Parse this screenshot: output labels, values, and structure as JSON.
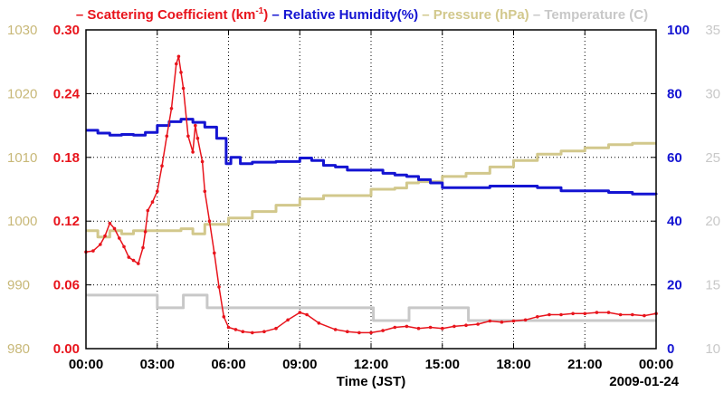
{
  "chart_data": {
    "type": "line",
    "legend": [
      {
        "prefix": "– ",
        "label": "Scattering Coefficient (km",
        "sup": "-1",
        "suffix": ")",
        "color": "#e8141c"
      },
      {
        "prefix": "– ",
        "label": "Relative Humidity(%)",
        "color": "#1414d2"
      },
      {
        "prefix": "– ",
        "label": "Pressure (hPa)",
        "color": "#d2c88c"
      },
      {
        "prefix": "– ",
        "label": "Temperature (C)",
        "color": "#c8c8c8"
      }
    ],
    "xlabel": "Time (JST)",
    "date_label": "2009-01-24",
    "x_range_hours": [
      0,
      24
    ],
    "x_ticks": [
      {
        "h": 0,
        "label": "00:00"
      },
      {
        "h": 3,
        "label": "03:00"
      },
      {
        "h": 6,
        "label": "06:00"
      },
      {
        "h": 9,
        "label": "09:00"
      },
      {
        "h": 12,
        "label": "12:00"
      },
      {
        "h": 15,
        "label": "15:00"
      },
      {
        "h": 18,
        "label": "18:00"
      },
      {
        "h": 21,
        "label": "21:00"
      },
      {
        "h": 24,
        "label": "00:00"
      }
    ],
    "axes": {
      "pressure": {
        "range": [
          980,
          1030
        ],
        "ticks": [
          "980",
          "990",
          "1000",
          "1010",
          "1020",
          "1030"
        ],
        "color": "#c8b878"
      },
      "scattering": {
        "range": [
          0,
          0.3
        ],
        "ticks": [
          "0.00",
          "0.06",
          "0.12",
          "0.18",
          "0.24",
          "0.30"
        ],
        "color": "#e8141c"
      },
      "humidity": {
        "range": [
          0,
          100
        ],
        "ticks": [
          "0",
          "20",
          "40",
          "60",
          "80",
          "100"
        ],
        "color": "#1414d2"
      },
      "temperature": {
        "range": [
          10,
          35
        ],
        "ticks": [
          "10",
          "15",
          "20",
          "25",
          "30",
          "35"
        ],
        "color": "#c8c8c8"
      }
    },
    "series": [
      {
        "name": "Scattering Coefficient",
        "axis": "scattering",
        "color": "#e8141c",
        "markers": true,
        "points": [
          [
            0,
            0.091
          ],
          [
            0.3,
            0.092
          ],
          [
            0.6,
            0.098
          ],
          [
            0.8,
            0.106
          ],
          [
            1.0,
            0.118
          ],
          [
            1.2,
            0.113
          ],
          [
            1.4,
            0.104
          ],
          [
            1.6,
            0.096
          ],
          [
            1.8,
            0.086
          ],
          [
            2.0,
            0.083
          ],
          [
            2.2,
            0.08
          ],
          [
            2.4,
            0.095
          ],
          [
            2.5,
            0.11
          ],
          [
            2.6,
            0.13
          ],
          [
            2.8,
            0.138
          ],
          [
            3.0,
            0.148
          ],
          [
            3.2,
            0.172
          ],
          [
            3.4,
            0.2
          ],
          [
            3.6,
            0.226
          ],
          [
            3.8,
            0.268
          ],
          [
            3.9,
            0.275
          ],
          [
            4.0,
            0.26
          ],
          [
            4.1,
            0.245
          ],
          [
            4.3,
            0.2
          ],
          [
            4.5,
            0.185
          ],
          [
            4.6,
            0.21
          ],
          [
            4.7,
            0.198
          ],
          [
            4.9,
            0.176
          ],
          [
            5.0,
            0.148
          ],
          [
            5.2,
            0.12
          ],
          [
            5.4,
            0.09
          ],
          [
            5.6,
            0.058
          ],
          [
            5.8,
            0.03
          ],
          [
            6.0,
            0.02
          ],
          [
            6.3,
            0.018
          ],
          [
            6.6,
            0.016
          ],
          [
            7.0,
            0.015
          ],
          [
            7.5,
            0.016
          ],
          [
            8.0,
            0.019
          ],
          [
            8.5,
            0.027
          ],
          [
            9.0,
            0.034
          ],
          [
            9.3,
            0.032
          ],
          [
            9.8,
            0.024
          ],
          [
            10.5,
            0.018
          ],
          [
            11.0,
            0.016
          ],
          [
            11.5,
            0.015
          ],
          [
            12.0,
            0.015
          ],
          [
            12.5,
            0.017
          ],
          [
            13.0,
            0.02
          ],
          [
            13.5,
            0.021
          ],
          [
            14.0,
            0.019
          ],
          [
            14.5,
            0.02
          ],
          [
            15.0,
            0.019
          ],
          [
            15.5,
            0.021
          ],
          [
            16.0,
            0.022
          ],
          [
            16.5,
            0.023
          ],
          [
            17.0,
            0.026
          ],
          [
            17.5,
            0.025
          ],
          [
            18.0,
            0.026
          ],
          [
            18.5,
            0.027
          ],
          [
            19.0,
            0.03
          ],
          [
            19.5,
            0.032
          ],
          [
            20.0,
            0.032
          ],
          [
            20.5,
            0.033
          ],
          [
            21.0,
            0.033
          ],
          [
            21.5,
            0.034
          ],
          [
            22.0,
            0.034
          ],
          [
            22.5,
            0.032
          ],
          [
            23.0,
            0.032
          ],
          [
            23.5,
            0.031
          ],
          [
            24.0,
            0.033
          ]
        ]
      },
      {
        "name": "Relative Humidity",
        "axis": "humidity",
        "color": "#1414d2",
        "markers": false,
        "points": [
          [
            0,
            68.5
          ],
          [
            0.5,
            67.6
          ],
          [
            1.0,
            67.0
          ],
          [
            1.5,
            67.2
          ],
          [
            2.0,
            67.0
          ],
          [
            2.5,
            67.8
          ],
          [
            3.0,
            70.0
          ],
          [
            3.5,
            71.2
          ],
          [
            4.0,
            72.0
          ],
          [
            4.5,
            71.0
          ],
          [
            5.0,
            69.5
          ],
          [
            5.5,
            66.0
          ],
          [
            5.9,
            58.0
          ],
          [
            6.1,
            60.0
          ],
          [
            6.5,
            58.0
          ],
          [
            7.0,
            58.5
          ],
          [
            8.0,
            58.7
          ],
          [
            9.0,
            59.8
          ],
          [
            9.5,
            59.0
          ],
          [
            10.0,
            57.5
          ],
          [
            10.5,
            57.0
          ],
          [
            11.0,
            56.0
          ],
          [
            12.0,
            56.0
          ],
          [
            12.5,
            55.0
          ],
          [
            13.0,
            54.5
          ],
          [
            13.5,
            54.0
          ],
          [
            14.0,
            53.0
          ],
          [
            14.5,
            52.0
          ],
          [
            15.0,
            50.5
          ],
          [
            16.0,
            50.5
          ],
          [
            17.0,
            51.0
          ],
          [
            18.0,
            51.0
          ],
          [
            19.0,
            50.5
          ],
          [
            20.0,
            49.5
          ],
          [
            21.0,
            49.5
          ],
          [
            22.0,
            49.0
          ],
          [
            23.0,
            48.5
          ],
          [
            24.0,
            48.3
          ]
        ]
      },
      {
        "name": "Pressure",
        "axis": "pressure",
        "color": "#d2c88c",
        "markers": false,
        "points": [
          [
            0,
            998.5
          ],
          [
            0.5,
            997.5
          ],
          [
            1.0,
            998.5
          ],
          [
            1.5,
            998.0
          ],
          [
            2.0,
            998.5
          ],
          [
            3.0,
            998.5
          ],
          [
            4.0,
            998.8
          ],
          [
            4.5,
            998.0
          ],
          [
            5.0,
            999.5
          ],
          [
            6.0,
            1000.5
          ],
          [
            7.0,
            1001.5
          ],
          [
            8.0,
            1002.5
          ],
          [
            9.0,
            1003.5
          ],
          [
            10.0,
            1004.0
          ],
          [
            11.0,
            1004.0
          ],
          [
            12.0,
            1005.0
          ],
          [
            13.0,
            1005.2
          ],
          [
            13.5,
            1006.0
          ],
          [
            14.0,
            1006.2
          ],
          [
            15.0,
            1007.0
          ],
          [
            16.0,
            1007.5
          ],
          [
            17.0,
            1008.5
          ],
          [
            18.0,
            1009.5
          ],
          [
            19.0,
            1010.5
          ],
          [
            20.0,
            1011.0
          ],
          [
            21.0,
            1011.5
          ],
          [
            22.0,
            1012.0
          ],
          [
            23.0,
            1012.2
          ],
          [
            24.0,
            1012.2
          ]
        ]
      },
      {
        "name": "Temperature",
        "axis": "temperature",
        "color": "#c8c8c8",
        "markers": false,
        "points": [
          [
            0,
            14.2
          ],
          [
            2.9,
            14.2
          ],
          [
            3.0,
            13.2
          ],
          [
            4.0,
            13.2
          ],
          [
            4.1,
            14.2
          ],
          [
            5.0,
            14.2
          ],
          [
            5.1,
            13.2
          ],
          [
            12.0,
            13.2
          ],
          [
            12.1,
            12.2
          ],
          [
            13.5,
            12.2
          ],
          [
            13.6,
            13.2
          ],
          [
            16.0,
            13.2
          ],
          [
            16.1,
            12.2
          ],
          [
            24.0,
            12.2
          ]
        ]
      }
    ]
  }
}
